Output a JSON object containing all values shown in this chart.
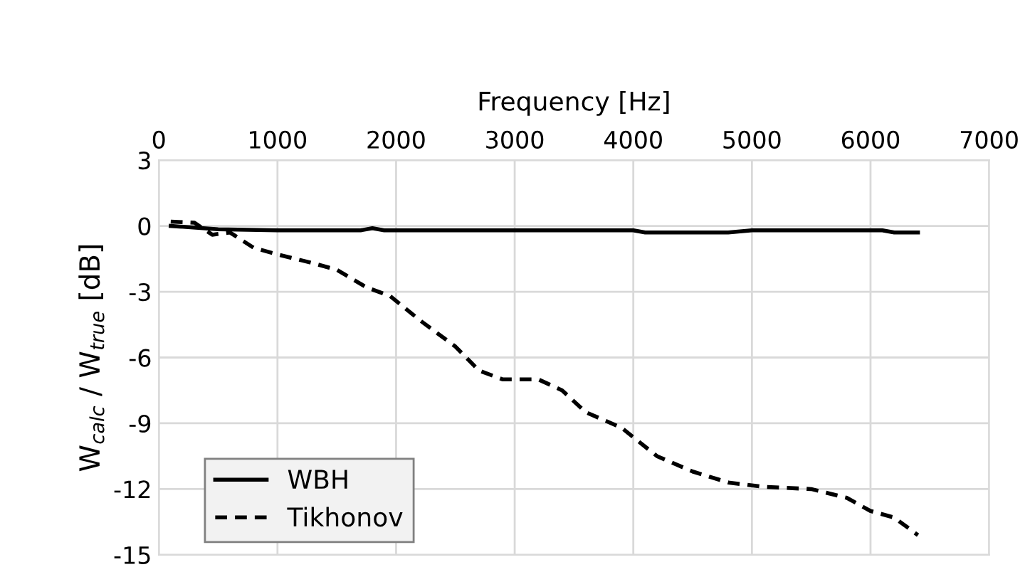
{
  "chart_data": {
    "type": "line",
    "xlabel": "Frequency [Hz]",
    "ylabel": "W$_{calc}$ / W$_{true}$ [dB]",
    "xlim": [
      0,
      7000
    ],
    "xticks": [
      0,
      1000,
      2000,
      3000,
      4000,
      5000,
      6000,
      7000
    ],
    "ylim": [
      -15,
      3
    ],
    "yticks": [
      3,
      0,
      -3,
      -6,
      -9,
      -12,
      -15
    ],
    "grid": true,
    "legend": "bottom left",
    "series": [
      {
        "name": "WBH",
        "color": "#000000",
        "line_style": "solid",
        "x": [
          100,
          500,
          1000,
          1700,
          1800,
          1900,
          4000,
          4100,
          4800,
          5000,
          6100,
          6200,
          6400
        ],
        "values": [
          0,
          -0.15,
          -0.2,
          -0.2,
          -0.1,
          -0.2,
          -0.2,
          -0.3,
          -0.3,
          -0.2,
          -0.2,
          -0.3,
          -0.3
        ]
      },
      {
        "name": "Tikhonov",
        "color": "#000000",
        "line_style": "dashed",
        "x": [
          100,
          300,
          450,
          600,
          800,
          1000,
          1300,
          1500,
          1750,
          1950,
          2200,
          2500,
          2700,
          2900,
          3200,
          3400,
          3600,
          3900,
          4200,
          4500,
          4800,
          5100,
          5500,
          5800,
          6000,
          6200,
          6400
        ],
        "values": [
          0.2,
          0.15,
          -0.4,
          -0.3,
          -1.0,
          -1.3,
          -1.7,
          -2.0,
          -2.8,
          -3.2,
          -4.3,
          -5.5,
          -6.6,
          -7.0,
          -7.0,
          -7.5,
          -8.5,
          -9.2,
          -10.5,
          -11.2,
          -11.7,
          -11.9,
          -12.0,
          -12.4,
          -13.0,
          -13.3,
          -14.1
        ]
      }
    ]
  }
}
